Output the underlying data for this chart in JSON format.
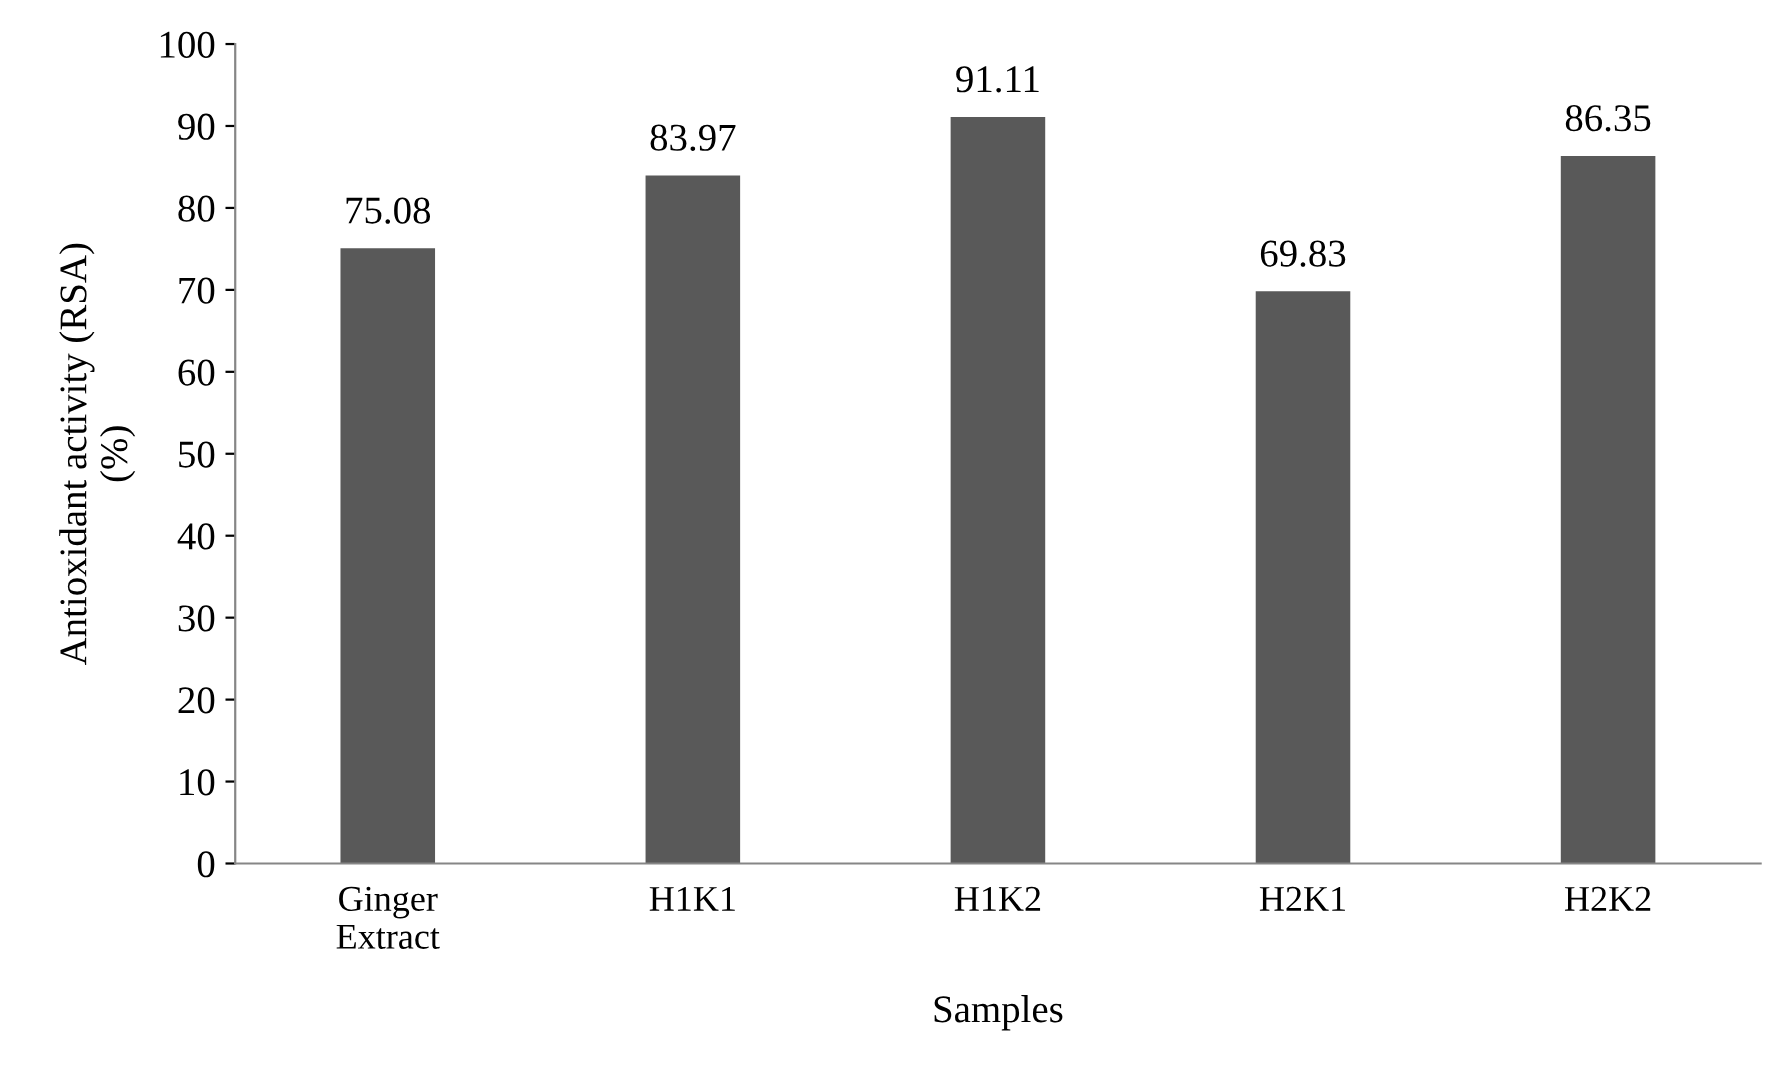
{
  "chart_data": {
    "type": "bar",
    "xlabel": "Samples",
    "ylabel": "Antioxidant activity (RSA)\n(%)",
    "categories": [
      "Ginger\nExtract",
      "H1K1",
      "H1K2",
      "H2K1",
      "H2K2"
    ],
    "values": [
      75.08,
      83.97,
      91.11,
      69.83,
      86.35
    ],
    "value_labels": [
      "75.08",
      "83.97",
      "91.11",
      "69.83",
      "86.35"
    ],
    "color": "#595959",
    "ylim": [
      0,
      100
    ],
    "yticks": [
      0,
      10,
      20,
      30,
      40,
      50,
      60,
      70,
      80,
      90,
      100
    ],
    "grid": false
  }
}
